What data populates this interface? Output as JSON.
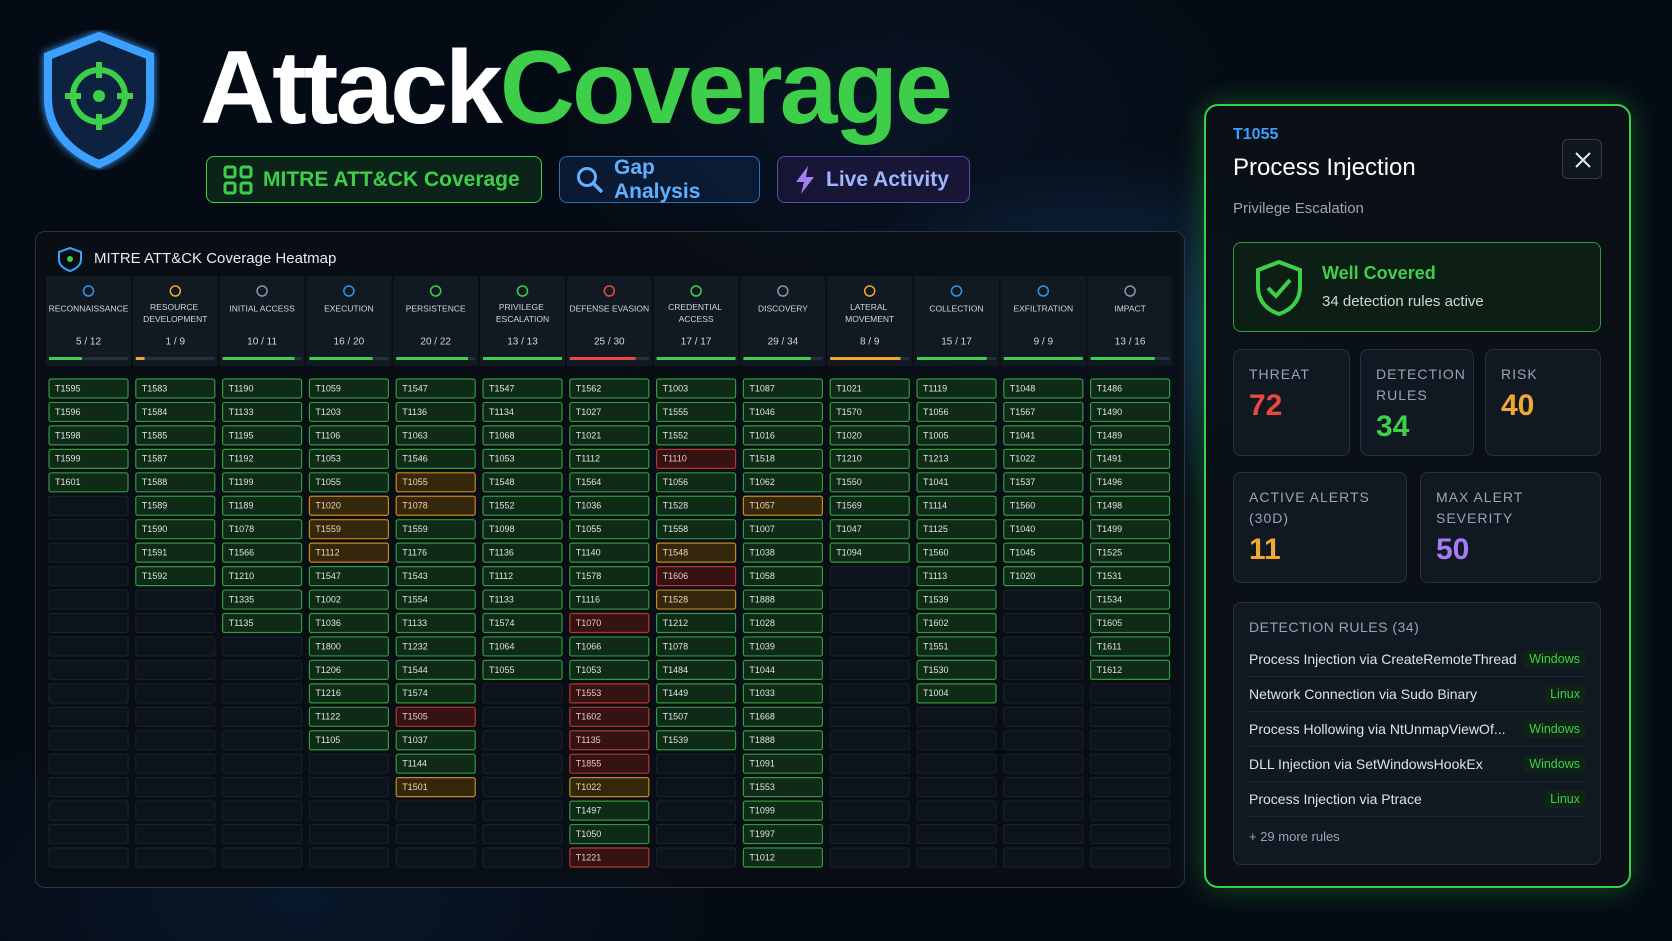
{
  "header": {
    "title_part1": "Attack",
    "title_part2": "Coverage",
    "tabs": [
      "MITRE ATT&CK Coverage",
      "Gap Analysis",
      "Live Activity"
    ]
  },
  "heatmap": {
    "title": "MITRE ATT&CK Coverage Heatmap",
    "columns": [
      {
        "name": "RECONNAISSANCE",
        "coverage": "5 / 12",
        "bar_color": "#3ecf4a",
        "icon_color": "#3a8fe8",
        "techniques": [
          {
            "id": "T1595",
            "status": "ok"
          },
          {
            "id": "T1596",
            "status": "ok"
          },
          {
            "id": "T1598",
            "status": "ok"
          },
          {
            "id": "T1599",
            "status": "ok"
          },
          {
            "id": "T1601",
            "status": "ok"
          }
        ]
      },
      {
        "name": "RESOURCE DEVELOPMENT",
        "coverage": "1 / 9",
        "bar_color": "#f0a830",
        "icon_color": "#f0a830",
        "techniques": [
          {
            "id": "T1583",
            "status": "ok"
          },
          {
            "id": "T1584",
            "status": "ok"
          },
          {
            "id": "T1585",
            "status": "ok"
          },
          {
            "id": "T1587",
            "status": "ok"
          },
          {
            "id": "T1588",
            "status": "ok"
          },
          {
            "id": "T1589",
            "status": "ok"
          },
          {
            "id": "T1590",
            "status": "ok"
          },
          {
            "id": "T1591",
            "status": "ok"
          },
          {
            "id": "T1592",
            "status": "ok"
          }
        ]
      },
      {
        "name": "INITIAL ACCESS",
        "coverage": "10 / 11",
        "bar_color": "#3ecf4a",
        "icon_color": "#8a96a6",
        "techniques": [
          {
            "id": "T1190",
            "status": "ok"
          },
          {
            "id": "T1133",
            "status": "ok"
          },
          {
            "id": "T1195",
            "status": "ok"
          },
          {
            "id": "T1192",
            "status": "ok"
          },
          {
            "id": "T1199",
            "status": "ok"
          },
          {
            "id": "T1189",
            "status": "ok"
          },
          {
            "id": "T1078",
            "status": "ok"
          },
          {
            "id": "T1566",
            "status": "ok"
          },
          {
            "id": "T1210",
            "status": "ok"
          },
          {
            "id": "T1335",
            "status": "ok"
          },
          {
            "id": "T1135",
            "status": "ok"
          }
        ]
      },
      {
        "name": "EXECUTION",
        "coverage": "16 / 20",
        "bar_color": "#3ecf4a",
        "icon_color": "#3a8fe8",
        "techniques": [
          {
            "id": "T1059",
            "status": "ok"
          },
          {
            "id": "T1203",
            "status": "ok"
          },
          {
            "id": "T1106",
            "status": "ok"
          },
          {
            "id": "T1053",
            "status": "ok"
          },
          {
            "id": "T1055",
            "status": "ok"
          },
          {
            "id": "T1020",
            "status": "partial"
          },
          {
            "id": "T1559",
            "status": "partial"
          },
          {
            "id": "T1112",
            "status": "partial"
          },
          {
            "id": "T1547",
            "status": "ok"
          },
          {
            "id": "T1002",
            "status": "ok"
          },
          {
            "id": "T1036",
            "status": "ok"
          },
          {
            "id": "T1800",
            "status": "ok"
          },
          {
            "id": "T1206",
            "status": "ok"
          },
          {
            "id": "T1216",
            "status": "ok"
          },
          {
            "id": "T1122",
            "status": "ok"
          },
          {
            "id": "T1105",
            "status": "ok"
          }
        ]
      },
      {
        "name": "PERSISTENCE",
        "coverage": "20 / 22",
        "bar_color": "#3ecf4a",
        "icon_color": "#3ecf4a",
        "techniques": [
          {
            "id": "T1547",
            "status": "ok"
          },
          {
            "id": "T1136",
            "status": "ok"
          },
          {
            "id": "T1063",
            "status": "ok"
          },
          {
            "id": "T1546",
            "status": "ok"
          },
          {
            "id": "T1055",
            "status": "partial"
          },
          {
            "id": "T1078",
            "status": "partial"
          },
          {
            "id": "T1559",
            "status": "ok"
          },
          {
            "id": "T1176",
            "status": "ok"
          },
          {
            "id": "T1543",
            "status": "ok"
          },
          {
            "id": "T1554",
            "status": "ok"
          },
          {
            "id": "T1133",
            "status": "ok"
          },
          {
            "id": "T1232",
            "status": "ok"
          },
          {
            "id": "T1544",
            "status": "ok"
          },
          {
            "id": "T1574",
            "status": "ok"
          },
          {
            "id": "T1505",
            "status": "gap"
          },
          {
            "id": "T1037",
            "status": "ok"
          },
          {
            "id": "T1144",
            "status": "ok"
          },
          {
            "id": "T1501",
            "status": "partial"
          }
        ]
      },
      {
        "name": "PRIVILEGE ESCALATION",
        "coverage": "13 / 13",
        "bar_color": "#3ecf4a",
        "icon_color": "#3ecf4a",
        "techniques": [
          {
            "id": "T1547",
            "status": "ok"
          },
          {
            "id": "T1134",
            "status": "ok"
          },
          {
            "id": "T1068",
            "status": "ok"
          },
          {
            "id": "T1053",
            "status": "ok"
          },
          {
            "id": "T1548",
            "status": "ok"
          },
          {
            "id": "T1552",
            "status": "ok"
          },
          {
            "id": "T1098",
            "status": "ok"
          },
          {
            "id": "T1136",
            "status": "ok"
          },
          {
            "id": "T1112",
            "status": "ok"
          },
          {
            "id": "T1133",
            "status": "ok"
          },
          {
            "id": "T1574",
            "status": "ok"
          },
          {
            "id": "T1064",
            "status": "ok"
          },
          {
            "id": "T1055",
            "status": "ok"
          }
        ]
      },
      {
        "name": "DEFENSE EVASION",
        "coverage": "25 / 30",
        "bar_color": "#e8483f",
        "icon_color": "#e8483f",
        "techniques": [
          {
            "id": "T1562",
            "status": "ok"
          },
          {
            "id": "T1027",
            "status": "ok"
          },
          {
            "id": "T1021",
            "status": "ok"
          },
          {
            "id": "T1112",
            "status": "ok"
          },
          {
            "id": "T1564",
            "status": "ok"
          },
          {
            "id": "T1036",
            "status": "ok"
          },
          {
            "id": "T1055",
            "status": "ok"
          },
          {
            "id": "T1140",
            "status": "ok"
          },
          {
            "id": "T1578",
            "status": "ok"
          },
          {
            "id": "T1116",
            "status": "ok"
          },
          {
            "id": "T1070",
            "status": "gap"
          },
          {
            "id": "T1066",
            "status": "ok"
          },
          {
            "id": "T1053",
            "status": "ok"
          },
          {
            "id": "T1553",
            "status": "gap"
          },
          {
            "id": "T1602",
            "status": "gap"
          },
          {
            "id": "T1135",
            "status": "gap"
          },
          {
            "id": "T1855",
            "status": "gap"
          },
          {
            "id": "T1022",
            "status": "partial"
          },
          {
            "id": "T1497",
            "status": "ok"
          },
          {
            "id": "T1050",
            "status": "ok"
          },
          {
            "id": "T1221",
            "status": "gap"
          }
        ]
      },
      {
        "name": "CREDENTIAL ACCESS",
        "coverage": "17 / 17",
        "bar_color": "#3ecf4a",
        "icon_color": "#3ecf4a",
        "techniques": [
          {
            "id": "T1003",
            "status": "ok"
          },
          {
            "id": "T1555",
            "status": "ok"
          },
          {
            "id": "T1552",
            "status": "ok"
          },
          {
            "id": "T1110",
            "status": "gap"
          },
          {
            "id": "T1056",
            "status": "ok"
          },
          {
            "id": "T1528",
            "status": "ok"
          },
          {
            "id": "T1558",
            "status": "ok"
          },
          {
            "id": "T1548",
            "status": "partial"
          },
          {
            "id": "T1606",
            "status": "gap"
          },
          {
            "id": "T1528",
            "status": "partial"
          },
          {
            "id": "T1212",
            "status": "ok"
          },
          {
            "id": "T1078",
            "status": "ok"
          },
          {
            "id": "T1484",
            "status": "ok"
          },
          {
            "id": "T1449",
            "status": "ok"
          },
          {
            "id": "T1507",
            "status": "ok"
          },
          {
            "id": "T1539",
            "status": "ok"
          }
        ]
      },
      {
        "name": "DISCOVERY",
        "coverage": "29 / 34",
        "bar_color": "#3ecf4a",
        "icon_color": "#8a96a6",
        "techniques": [
          {
            "id": "T1087",
            "status": "ok"
          },
          {
            "id": "T1046",
            "status": "ok"
          },
          {
            "id": "T1016",
            "status": "ok"
          },
          {
            "id": "T1518",
            "status": "ok"
          },
          {
            "id": "T1062",
            "status": "ok"
          },
          {
            "id": "T1057",
            "status": "partial"
          },
          {
            "id": "T1007",
            "status": "ok"
          },
          {
            "id": "T1038",
            "status": "ok"
          },
          {
            "id": "T1058",
            "status": "ok"
          },
          {
            "id": "T1888",
            "status": "ok"
          },
          {
            "id": "T1028",
            "status": "ok"
          },
          {
            "id": "T1039",
            "status": "ok"
          },
          {
            "id": "T1044",
            "status": "ok"
          },
          {
            "id": "T1033",
            "status": "ok"
          },
          {
            "id": "T1668",
            "status": "ok"
          },
          {
            "id": "T1888",
            "status": "ok"
          },
          {
            "id": "T1091",
            "status": "ok"
          },
          {
            "id": "T1553",
            "status": "ok"
          },
          {
            "id": "T1099",
            "status": "ok"
          },
          {
            "id": "T1997",
            "status": "ok"
          },
          {
            "id": "T1012",
            "status": "ok"
          }
        ]
      },
      {
        "name": "LATERAL MOVEMENT",
        "coverage": "8 / 9",
        "bar_color": "#f0a830",
        "icon_color": "#f0a830",
        "techniques": [
          {
            "id": "T1021",
            "status": "ok"
          },
          {
            "id": "T1570",
            "status": "ok"
          },
          {
            "id": "T1020",
            "status": "ok"
          },
          {
            "id": "T1210",
            "status": "ok"
          },
          {
            "id": "T1550",
            "status": "ok"
          },
          {
            "id": "T1569",
            "status": "ok"
          },
          {
            "id": "T1047",
            "status": "ok"
          },
          {
            "id": "T1094",
            "status": "ok"
          }
        ]
      },
      {
        "name": "COLLECTION",
        "coverage": "15 / 17",
        "bar_color": "#3ecf4a",
        "icon_color": "#3a8fe8",
        "techniques": [
          {
            "id": "T1119",
            "status": "ok"
          },
          {
            "id": "T1056",
            "status": "ok"
          },
          {
            "id": "T1005",
            "status": "ok"
          },
          {
            "id": "T1213",
            "status": "ok"
          },
          {
            "id": "T1041",
            "status": "ok"
          },
          {
            "id": "T1114",
            "status": "ok"
          },
          {
            "id": "T1125",
            "status": "ok"
          },
          {
            "id": "T1560",
            "status": "ok"
          },
          {
            "id": "T1113",
            "status": "ok"
          },
          {
            "id": "T1539",
            "status": "ok"
          },
          {
            "id": "T1602",
            "status": "ok"
          },
          {
            "id": "T1551",
            "status": "ok"
          },
          {
            "id": "T1530",
            "status": "ok"
          },
          {
            "id": "T1004",
            "status": "ok"
          }
        ]
      },
      {
        "name": "EXFILTRATION",
        "coverage": "9 / 9",
        "bar_color": "#3ecf4a",
        "icon_color": "#3a8fe8",
        "techniques": [
          {
            "id": "T1048",
            "status": "ok"
          },
          {
            "id": "T1567",
            "status": "ok"
          },
          {
            "id": "T1041",
            "status": "ok"
          },
          {
            "id": "T1022",
            "status": "ok"
          },
          {
            "id": "T1537",
            "status": "ok"
          },
          {
            "id": "T1560",
            "status": "ok"
          },
          {
            "id": "T1040",
            "status": "ok"
          },
          {
            "id": "T1045",
            "status": "ok"
          },
          {
            "id": "T1020",
            "status": "ok"
          }
        ]
      },
      {
        "name": "IMPACT",
        "coverage": "13 / 16",
        "bar_color": "#3ecf4a",
        "icon_color": "#8a96a6",
        "techniques": [
          {
            "id": "T1486",
            "status": "ok"
          },
          {
            "id": "T1490",
            "status": "ok"
          },
          {
            "id": "T1489",
            "status": "ok"
          },
          {
            "id": "T1491",
            "status": "ok"
          },
          {
            "id": "T1496",
            "status": "ok"
          },
          {
            "id": "T1498",
            "status": "ok"
          },
          {
            "id": "T1499",
            "status": "ok"
          },
          {
            "id": "T1525",
            "status": "ok"
          },
          {
            "id": "T1531",
            "status": "ok"
          },
          {
            "id": "T1534",
            "status": "ok"
          },
          {
            "id": "T1605",
            "status": "ok"
          },
          {
            "id": "T1611",
            "status": "ok"
          },
          {
            "id": "T1612",
            "status": "ok"
          }
        ]
      }
    ]
  },
  "detail": {
    "technique_id": "T1055",
    "name": "Process Injection",
    "tactic": "Privilege Escalation",
    "status_title": "Well Covered",
    "status_text": "34 detection rules active",
    "stats": [
      {
        "label": "THREAT",
        "value": 72,
        "color": "#e8483f"
      },
      {
        "label": "DETECTION RULES",
        "value": 34,
        "color": "#3ecf4a"
      },
      {
        "label": "RISK",
        "value": 40,
        "color": "#f0a830"
      },
      {
        "label": "ACTIVE ALERTS (30D)",
        "value": 11,
        "color": "#f0a830"
      },
      {
        "label": "MAX ALERT SEVERITY",
        "value": 50,
        "color": "#a77bf3"
      }
    ],
    "rules_title": "DETECTION RULES (34)",
    "rules": [
      {
        "name": "Process Injection via CreateRemoteThread",
        "platform": "Windows"
      },
      {
        "name": "Network Connection via Sudo Binary",
        "platform": "Linux"
      },
      {
        "name": "Process Hollowing via NtUnmapViewOf...",
        "platform": "Windows"
      },
      {
        "name": "DLL Injection via SetWindowsHookEx",
        "platform": "Windows"
      },
      {
        "name": "Process Injection via Ptrace",
        "platform": "Linux"
      }
    ],
    "more": "+ 29 more rules"
  }
}
